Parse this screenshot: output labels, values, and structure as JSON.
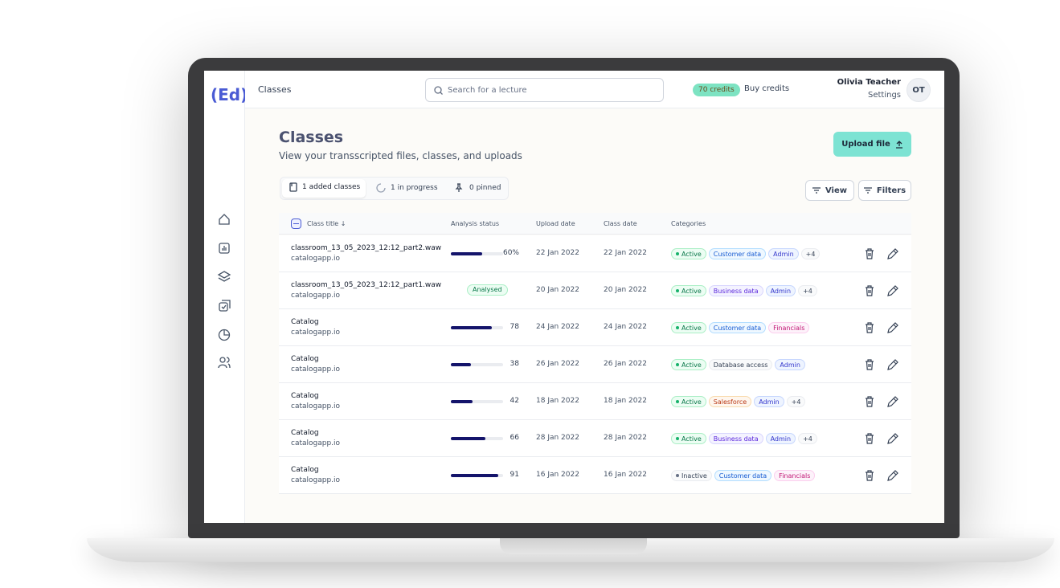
{
  "header": {
    "logo": "(Ed)",
    "section": "Classes",
    "search_placeholder": "Search for a lecture",
    "credits": "70 credits",
    "buy_credits": "Buy credits",
    "user_name": "Olivia Teacher",
    "settings": "Settings",
    "avatar": "OT"
  },
  "page": {
    "title": "Classes",
    "subtitle": "View your transscripted files, classes, and uploads",
    "upload_button": "Upload file",
    "tabs": [
      "1 added classes",
      "1 in progress",
      "0 pinned"
    ],
    "view_button": "View",
    "filters_button": "Filters"
  },
  "table": {
    "columns": [
      "Class title",
      "Analysis status",
      "Upload date",
      "Class date",
      "Categories"
    ],
    "rows": [
      {
        "title": "classroom_13_05_2023_12:12_part2.waw",
        "domain": "catalogapp.io",
        "progress": 60,
        "progress_label": "60%",
        "upload": "22 Jan 2022",
        "class_date": "22 Jan 2022",
        "tags": [
          {
            "text": "Active",
            "tone": "green"
          },
          {
            "text": "Customer data",
            "tone": "blue"
          },
          {
            "text": "Admin",
            "tone": "indigo"
          },
          {
            "text": "+4",
            "tone": "gray"
          }
        ]
      },
      {
        "title": "classroom_13_05_2023_12:12_part1.waw",
        "domain": "catalogapp.io",
        "status": "Analysed",
        "upload": "20 Jan 2022",
        "class_date": "20 Jan 2022",
        "tags": [
          {
            "text": "Active",
            "tone": "green"
          },
          {
            "text": "Business data",
            "tone": "purple"
          },
          {
            "text": "Admin",
            "tone": "indigo"
          },
          {
            "text": "+4",
            "tone": "gray"
          }
        ]
      },
      {
        "title": "Catalog",
        "domain": "catalogapp.io",
        "progress": 78,
        "upload": "24 Jan 2022",
        "class_date": "24 Jan 2022",
        "tags": [
          {
            "text": "Active",
            "tone": "green"
          },
          {
            "text": "Customer data",
            "tone": "blue"
          },
          {
            "text": "Financials",
            "tone": "pink"
          }
        ]
      },
      {
        "title": "Catalog",
        "domain": "catalogapp.io",
        "progress": 38,
        "upload": "26 Jan 2022",
        "class_date": "26 Jan 2022",
        "tags": [
          {
            "text": "Active",
            "tone": "green"
          },
          {
            "text": "Database access",
            "tone": "gray"
          },
          {
            "text": "Admin",
            "tone": "indigo"
          }
        ]
      },
      {
        "title": "Catalog",
        "domain": "catalogapp.io",
        "progress": 42,
        "upload": "18 Jan 2022",
        "class_date": "18 Jan 2022",
        "tags": [
          {
            "text": "Active",
            "tone": "green"
          },
          {
            "text": "Salesforce",
            "tone": "orange"
          },
          {
            "text": "Admin",
            "tone": "indigo"
          },
          {
            "text": "+4",
            "tone": "gray"
          }
        ]
      },
      {
        "title": "Catalog",
        "domain": "catalogapp.io",
        "progress": 66,
        "upload": "28 Jan 2022",
        "class_date": "28 Jan 2022",
        "tags": [
          {
            "text": "Active",
            "tone": "green"
          },
          {
            "text": "Business data",
            "tone": "purple"
          },
          {
            "text": "Admin",
            "tone": "indigo"
          },
          {
            "text": "+4",
            "tone": "gray"
          }
        ]
      },
      {
        "title": "Catalog",
        "domain": "catalogapp.io",
        "progress": 91,
        "upload": "16 Jan 2022",
        "class_date": "16 Jan 2022",
        "tags": [
          {
            "text": "Inactive",
            "tone": "gray"
          },
          {
            "text": "Customer data",
            "tone": "blue"
          },
          {
            "text": "Financials",
            "tone": "pink"
          }
        ]
      }
    ]
  }
}
